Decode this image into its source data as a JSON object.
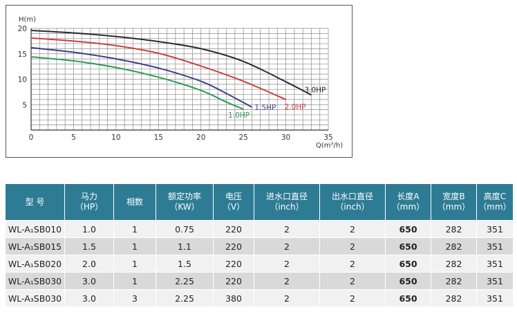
{
  "chart_data": {
    "type": "line",
    "ylabel": "H(m)",
    "xlabel": "Q(m³/h)",
    "xlim": [
      0,
      35
    ],
    "ylim": [
      0,
      20
    ],
    "x_ticks": [
      0,
      5,
      10,
      15,
      20,
      25,
      30,
      35
    ],
    "y_ticks": [
      5,
      10,
      15,
      20
    ],
    "grid": true,
    "series": [
      {
        "name": "3.0HP",
        "color": "#2b2b2b",
        "points": [
          [
            0,
            19.6
          ],
          [
            5,
            19.1
          ],
          [
            10,
            18.4
          ],
          [
            15,
            17.4
          ],
          [
            20,
            16.0
          ],
          [
            25,
            13.5
          ],
          [
            30,
            9.5
          ],
          [
            33,
            6.9
          ]
        ]
      },
      {
        "name": "2.0HP",
        "color": "#c8423c",
        "points": [
          [
            0,
            18.1
          ],
          [
            5,
            17.5
          ],
          [
            10,
            16.6
          ],
          [
            15,
            15.1
          ],
          [
            20,
            12.6
          ],
          [
            25,
            9.6
          ],
          [
            30,
            6.0
          ]
        ]
      },
      {
        "name": "1.5HP",
        "color": "#3f3f86",
        "points": [
          [
            0,
            16.2
          ],
          [
            5,
            15.3
          ],
          [
            10,
            14.0
          ],
          [
            15,
            12.2
          ],
          [
            20,
            9.6
          ],
          [
            23,
            7.2
          ],
          [
            26,
            4.5
          ]
        ]
      },
      {
        "name": "1.0HP",
        "color": "#2f9a5a",
        "points": [
          [
            0,
            14.4
          ],
          [
            5,
            13.6
          ],
          [
            10,
            12.3
          ],
          [
            15,
            10.4
          ],
          [
            20,
            7.8
          ],
          [
            23,
            5.5
          ],
          [
            25,
            4.1
          ]
        ]
      }
    ]
  },
  "table": {
    "headers": [
      {
        "l1": "型  号",
        "l2": ""
      },
      {
        "l1": "马力",
        "l2": "（HP）"
      },
      {
        "l1": "相数",
        "l2": ""
      },
      {
        "l1": "额定功率",
        "l2": "（KW）"
      },
      {
        "l1": "电压",
        "l2": "（V）"
      },
      {
        "l1": "进水口直径",
        "l2": "（inch）"
      },
      {
        "l1": "出水口直径",
        "l2": "（inch）"
      },
      {
        "l1": "长度A",
        "l2": "（mm）"
      },
      {
        "l1": "宽度B",
        "l2": "（mm）"
      },
      {
        "l1": "高度C",
        "l2": "（mm）"
      }
    ],
    "rows": [
      [
        "WL-A₁SB010",
        "1.0",
        "1",
        "0.75",
        "220",
        "2",
        "2",
        "650",
        "282",
        "351"
      ],
      [
        "WL-A₁SB015",
        "1.5",
        "1",
        "1.1",
        "220",
        "2",
        "2",
        "650",
        "282",
        "351"
      ],
      [
        "WL-A₁SB020",
        "2.0",
        "1",
        "1.5",
        "220",
        "2",
        "2",
        "650",
        "282",
        "351"
      ],
      [
        "WL-A₁SB030",
        "3.0",
        "1",
        "2.25",
        "220",
        "2",
        "2",
        "650",
        "282",
        "351"
      ],
      [
        "WL-A₃SB030",
        "3.0",
        "3",
        "2.25",
        "380",
        "2",
        "2",
        "650",
        "282",
        "351"
      ]
    ]
  }
}
